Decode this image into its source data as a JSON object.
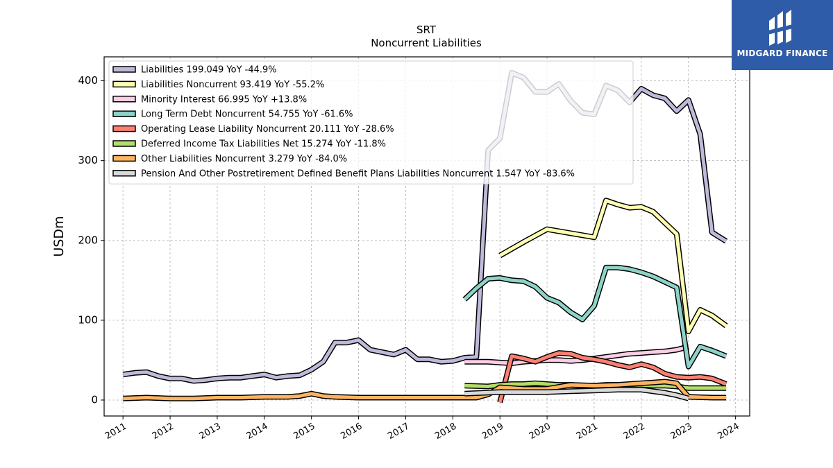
{
  "chart_data": {
    "type": "line",
    "title": "SRT",
    "subtitle": "Noncurrent  Liabilities",
    "ylabel": "USDm",
    "xlabel": "",
    "ylim": [
      -20,
      430
    ],
    "xlim": [
      2010.6,
      2024.3
    ],
    "yticks": [
      0,
      100,
      200,
      300,
      400
    ],
    "xticks": [
      2011,
      2012,
      2013,
      2014,
      2015,
      2016,
      2017,
      2018,
      2019,
      2020,
      2021,
      2022,
      2023,
      2024
    ],
    "grid": true,
    "legend_position": "upper-left",
    "series": [
      {
        "name": "Liabilities  199.049 YoY -44.9%",
        "color": "#bebada",
        "x": [
          2011.0,
          2011.25,
          2011.5,
          2011.75,
          2012.0,
          2012.25,
          2012.5,
          2012.75,
          2013.0,
          2013.25,
          2013.5,
          2013.75,
          2014.0,
          2014.25,
          2014.5,
          2014.75,
          2015.0,
          2015.25,
          2015.5,
          2015.75,
          2016.0,
          2016.25,
          2016.5,
          2016.75,
          2017.0,
          2017.25,
          2017.5,
          2017.75,
          2018.0,
          2018.25,
          2018.5,
          2018.75,
          2019.0,
          2019.25,
          2019.5,
          2019.75,
          2020.0,
          2020.25,
          2020.5,
          2020.75,
          2021.0,
          2021.25,
          2021.5,
          2021.75,
          2022.0,
          2022.25,
          2022.5,
          2022.75,
          2023.0,
          2023.25,
          2023.5,
          2023.8
        ],
        "y": [
          32,
          34,
          35,
          30,
          27,
          27,
          24,
          25,
          27,
          28,
          28,
          30,
          32,
          28,
          30,
          31,
          38,
          48,
          72,
          72,
          75,
          63,
          60,
          57,
          63,
          51,
          51,
          48,
          49,
          53,
          54,
          313,
          328,
          410,
          404,
          386,
          386,
          396,
          375,
          360,
          358,
          394,
          388,
          373,
          390,
          382,
          378,
          362,
          376,
          333,
          210,
          199
        ]
      },
      {
        "name": "Liabilities Noncurrent  93.419 YoY -55.2%",
        "color": "#ffffb3",
        "x": [
          2019.0,
          2019.5,
          2020.0,
          2020.5,
          2021.0,
          2021.25,
          2021.5,
          2021.75,
          2022.0,
          2022.25,
          2022.5,
          2022.75,
          2023.0,
          2023.25,
          2023.5,
          2023.8
        ],
        "y": [
          181,
          198,
          214,
          209,
          204,
          250,
          245,
          241,
          242,
          236,
          222,
          208,
          86,
          113,
          106,
          93
        ]
      },
      {
        "name": "Minority Interest  66.995 YoY +13.8%",
        "color": "#fccde5",
        "x": [
          2018.25,
          2018.5,
          2018.75,
          2019.0,
          2019.25,
          2019.5,
          2019.75,
          2020.0,
          2020.25,
          2020.5,
          2020.75,
          2021.0,
          2021.25,
          2021.5,
          2021.75,
          2022.0,
          2022.25,
          2022.5,
          2022.75,
          2023.0
        ],
        "y": [
          48,
          48,
          48,
          47,
          46,
          48,
          49,
          50,
          50,
          49,
          50,
          52,
          54,
          56,
          58,
          59,
          60,
          61,
          63,
          67
        ]
      },
      {
        "name": "Long Term Debt Noncurrent  54.755 YoY -61.6%",
        "color": "#8dd3c7",
        "x": [
          2018.25,
          2018.5,
          2018.75,
          2019.0,
          2019.25,
          2019.5,
          2019.75,
          2020.0,
          2020.25,
          2020.5,
          2020.75,
          2021.0,
          2021.25,
          2021.5,
          2021.75,
          2022.0,
          2022.25,
          2022.5,
          2022.75,
          2023.0,
          2023.25,
          2023.5,
          2023.8
        ],
        "y": [
          126,
          140,
          152,
          153,
          150,
          149,
          142,
          128,
          122,
          110,
          101,
          118,
          166,
          166,
          164,
          160,
          155,
          148,
          141,
          42,
          67,
          62,
          55
        ]
      },
      {
        "name": "Operating Lease Liability Noncurrent  20.111 YoY -28.6%",
        "color": "#fb8072",
        "x": [
          2019.0,
          2019.25,
          2019.5,
          2019.75,
          2020.0,
          2020.25,
          2020.5,
          2020.75,
          2021.0,
          2021.25,
          2021.5,
          2021.75,
          2022.0,
          2022.25,
          2022.5,
          2022.75,
          2023.0,
          2023.25,
          2023.5,
          2023.8
        ],
        "y": [
          -3,
          55,
          52,
          48,
          54,
          59,
          58,
          53,
          51,
          48,
          44,
          41,
          45,
          41,
          33,
          29,
          28,
          29,
          27,
          20
        ]
      },
      {
        "name": "Deferred Income Tax Liabilities Net  15.274 YoY -11.8%",
        "color": "#b3de69",
        "x": [
          2018.25,
          2018.75,
          2019.0,
          2019.25,
          2019.5,
          2019.75,
          2020.0,
          2020.25,
          2020.5,
          2020.75,
          2021.0,
          2021.25,
          2021.5,
          2021.75,
          2022.0,
          2022.25,
          2022.5,
          2022.75,
          2023.0,
          2023.25,
          2023.5,
          2023.8
        ],
        "y": [
          18,
          17,
          19,
          20,
          20,
          21,
          20,
          19,
          19,
          18,
          18,
          19,
          19,
          19,
          19,
          18,
          18,
          17,
          15,
          15,
          15,
          15
        ]
      },
      {
        "name": "Other Liabilities Noncurrent  3.279 YoY -84.0%",
        "color": "#fdb462",
        "x": [
          2011.0,
          2011.5,
          2012.0,
          2012.5,
          2013.0,
          2013.5,
          2014.0,
          2014.5,
          2014.75,
          2015.0,
          2015.25,
          2015.5,
          2016.0,
          2016.5,
          2016.75,
          2017.0,
          2017.5,
          2018.0,
          2018.5,
          2018.75,
          2019.0,
          2019.5,
          2020.0,
          2020.5,
          2021.0,
          2021.5,
          2022.0,
          2022.25,
          2022.5,
          2022.75,
          2023.0,
          2023.5,
          2023.8
        ],
        "y": [
          2,
          3,
          2,
          2,
          3,
          3,
          4,
          4,
          5,
          8,
          5,
          4,
          3,
          3,
          3,
          3,
          3,
          3,
          3,
          7,
          16,
          14,
          14,
          19,
          18,
          19,
          21,
          22,
          23,
          21,
          4,
          3,
          3
        ]
      },
      {
        "name": "Pension And Other Postretirement Defined Benefit Plans Liabilities Noncurrent  1.547 YoY -83.6%",
        "color": "#d9d9d9",
        "x": [
          2018.25,
          2019.0,
          2019.5,
          2020.0,
          2020.5,
          2021.0,
          2021.5,
          2022.0,
          2022.5,
          2022.75,
          2023.0
        ],
        "y": [
          8,
          10,
          10,
          10,
          11,
          12,
          13,
          13,
          9,
          6,
          2
        ]
      }
    ]
  },
  "brand": {
    "name": "MIDGARD FINANCE",
    "bg_color": "#2f5ca8"
  }
}
